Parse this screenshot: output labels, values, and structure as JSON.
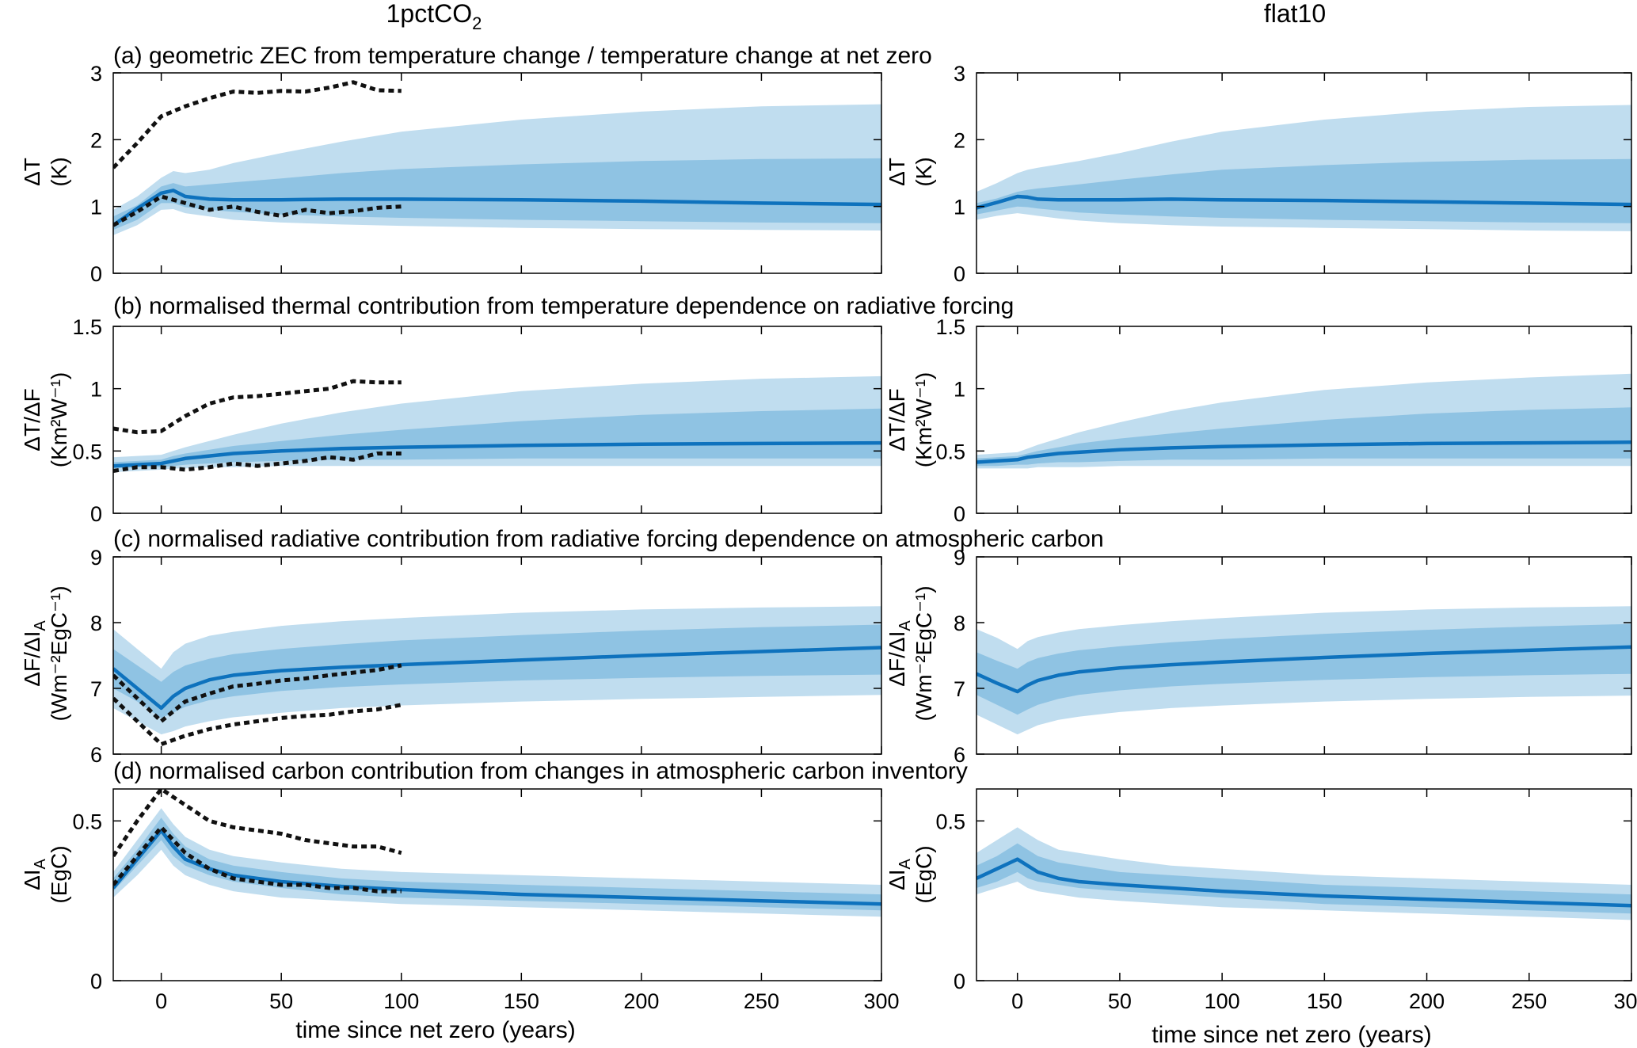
{
  "column_titles": {
    "left": "1pctCO",
    "left_subscript": "2",
    "right": "flat10"
  },
  "x_axis": {
    "label": "time since net zero (years)",
    "xlim": [
      -20,
      300
    ],
    "ticks": [
      0,
      50,
      100,
      150,
      200,
      250,
      300
    ],
    "tick_labels": [
      "0",
      "50",
      "100",
      "150",
      "200",
      "250",
      "300"
    ]
  },
  "colors": {
    "band_outer": "#c0ddef",
    "band_inner": "#8fc3e3",
    "median_line": "#0e72bd",
    "reference_dotted": "#111111"
  },
  "panels": [
    {
      "id": "a",
      "title": "(a) geometric ZEC from temperature change / temperature change at net zero",
      "ylabel_line1": "ΔT",
      "ylabel_line2": "(K)",
      "ylim": [
        0,
        3
      ],
      "ticks": [
        0,
        1,
        2,
        3
      ],
      "tick_labels": [
        "0",
        "1",
        "2",
        "3"
      ]
    },
    {
      "id": "b",
      "title": "(b) normalised thermal contribution from temperature dependence on radiative forcing",
      "ylabel_line1": "ΔT/ΔF",
      "ylabel_line2": "(Km²W⁻¹)",
      "ylim": [
        0,
        1.5
      ],
      "ticks": [
        0,
        0.5,
        1,
        1.5
      ],
      "tick_labels": [
        "0",
        "0.5",
        "1",
        "1.5"
      ]
    },
    {
      "id": "c",
      "title": "(c) normalised radiative contribution from radiative forcing dependence on atmospheric carbon",
      "ylabel_line1": "ΔF/ΔI",
      "ylabel_line1_subscript": "A",
      "ylabel_line2": "(Wm⁻²EgC⁻¹)",
      "ylim": [
        6,
        9
      ],
      "ticks": [
        6,
        7,
        8,
        9
      ],
      "tick_labels": [
        "6",
        "7",
        "8",
        "9"
      ]
    },
    {
      "id": "d",
      "title": "(d) normalised carbon contribution from changes in atmospheric carbon inventory",
      "ylabel_line1": "ΔI",
      "ylabel_line1_subscript": "A",
      "ylabel_line2": "(EgC)",
      "ylim": [
        0,
        0.6
      ],
      "ticks": [
        0,
        0.5
      ],
      "tick_labels": [
        "0",
        "0.5"
      ]
    }
  ],
  "chart_data": [
    {
      "type": "area",
      "panel": "a",
      "column": "1pctCO2",
      "x": [
        -20,
        -10,
        0,
        5,
        10,
        20,
        30,
        50,
        75,
        100,
        150,
        200,
        250,
        300
      ],
      "bands": {
        "outer_low": [
          0.57,
          0.72,
          0.95,
          0.96,
          0.9,
          0.85,
          0.8,
          0.76,
          0.73,
          0.71,
          0.68,
          0.66,
          0.65,
          0.64
        ],
        "inner_low": [
          0.65,
          0.8,
          1.05,
          1.05,
          0.99,
          0.95,
          0.92,
          0.88,
          0.85,
          0.83,
          0.8,
          0.78,
          0.76,
          0.75
        ],
        "inner_high": [
          0.85,
          1.02,
          1.3,
          1.35,
          1.3,
          1.33,
          1.36,
          1.42,
          1.5,
          1.56,
          1.63,
          1.68,
          1.71,
          1.72
        ],
        "outer_high": [
          0.95,
          1.15,
          1.43,
          1.53,
          1.5,
          1.55,
          1.65,
          1.8,
          1.97,
          2.12,
          2.3,
          2.42,
          2.5,
          2.53
        ]
      },
      "median": [
        0.72,
        0.97,
        1.2,
        1.24,
        1.15,
        1.11,
        1.1,
        1.1,
        1.11,
        1.11,
        1.1,
        1.08,
        1.05,
        1.03
      ],
      "dotted_series": [
        {
          "x": [
            -20,
            -10,
            0,
            10,
            20,
            30,
            40,
            50,
            60,
            70,
            80,
            90,
            100
          ],
          "values": [
            1.58,
            1.95,
            2.35,
            2.5,
            2.62,
            2.72,
            2.7,
            2.73,
            2.72,
            2.78,
            2.86,
            2.74,
            2.73
          ]
        },
        {
          "x": [
            -20,
            -10,
            0,
            10,
            20,
            30,
            40,
            50,
            60,
            70,
            80,
            90,
            100
          ],
          "values": [
            0.72,
            0.92,
            1.15,
            1.05,
            0.95,
            1.0,
            0.92,
            0.86,
            0.95,
            0.9,
            0.93,
            0.98,
            1.0
          ]
        }
      ]
    },
    {
      "type": "area",
      "panel": "a",
      "column": "flat10",
      "x": [
        -20,
        -10,
        0,
        5,
        10,
        20,
        30,
        50,
        75,
        100,
        150,
        200,
        250,
        300
      ],
      "bands": {
        "outer_low": [
          0.8,
          0.86,
          0.9,
          0.88,
          0.86,
          0.82,
          0.79,
          0.75,
          0.72,
          0.7,
          0.68,
          0.66,
          0.64,
          0.63
        ],
        "inner_low": [
          0.88,
          0.94,
          1.0,
          0.99,
          0.97,
          0.94,
          0.91,
          0.88,
          0.85,
          0.83,
          0.8,
          0.78,
          0.76,
          0.75
        ],
        "inner_high": [
          1.05,
          1.12,
          1.22,
          1.25,
          1.27,
          1.3,
          1.33,
          1.4,
          1.48,
          1.55,
          1.62,
          1.67,
          1.7,
          1.71
        ],
        "outer_high": [
          1.22,
          1.35,
          1.5,
          1.55,
          1.58,
          1.63,
          1.68,
          1.8,
          1.97,
          2.12,
          2.3,
          2.42,
          2.49,
          2.52
        ]
      },
      "median": [
        0.98,
        1.06,
        1.15,
        1.14,
        1.11,
        1.1,
        1.1,
        1.1,
        1.11,
        1.1,
        1.09,
        1.07,
        1.05,
        1.03
      ]
    },
    {
      "type": "area",
      "panel": "b",
      "column": "1pctCO2",
      "x": [
        -20,
        -10,
        0,
        5,
        10,
        20,
        30,
        50,
        75,
        100,
        150,
        200,
        250,
        300
      ],
      "bands": {
        "outer_low": [
          0.33,
          0.34,
          0.35,
          0.36,
          0.36,
          0.37,
          0.37,
          0.38,
          0.38,
          0.38,
          0.38,
          0.38,
          0.38,
          0.38
        ],
        "inner_low": [
          0.36,
          0.37,
          0.37,
          0.38,
          0.39,
          0.4,
          0.41,
          0.42,
          0.43,
          0.43,
          0.44,
          0.44,
          0.44,
          0.44
        ],
        "inner_high": [
          0.41,
          0.42,
          0.43,
          0.46,
          0.48,
          0.51,
          0.54,
          0.58,
          0.63,
          0.67,
          0.74,
          0.79,
          0.82,
          0.84
        ],
        "outer_high": [
          0.45,
          0.46,
          0.47,
          0.5,
          0.53,
          0.58,
          0.63,
          0.72,
          0.81,
          0.88,
          0.98,
          1.04,
          1.08,
          1.1
        ]
      },
      "median": [
        0.38,
        0.39,
        0.4,
        0.42,
        0.44,
        0.46,
        0.48,
        0.5,
        0.52,
        0.53,
        0.545,
        0.555,
        0.56,
        0.565
      ],
      "dotted_series": [
        {
          "x": [
            -20,
            -10,
            0,
            10,
            20,
            30,
            40,
            50,
            60,
            70,
            80,
            90,
            100
          ],
          "values": [
            0.68,
            0.65,
            0.66,
            0.78,
            0.88,
            0.93,
            0.94,
            0.96,
            0.98,
            1.0,
            1.06,
            1.05,
            1.05
          ]
        },
        {
          "x": [
            -20,
            -10,
            0,
            10,
            20,
            30,
            40,
            50,
            60,
            70,
            80,
            90,
            100
          ],
          "values": [
            0.34,
            0.37,
            0.37,
            0.35,
            0.37,
            0.4,
            0.38,
            0.4,
            0.42,
            0.45,
            0.43,
            0.48,
            0.48
          ]
        }
      ]
    },
    {
      "type": "area",
      "panel": "b",
      "column": "flat10",
      "x": [
        -20,
        -10,
        0,
        5,
        10,
        20,
        30,
        50,
        75,
        100,
        150,
        200,
        250,
        300
      ],
      "bands": {
        "outer_low": [
          0.36,
          0.36,
          0.36,
          0.36,
          0.37,
          0.37,
          0.37,
          0.38,
          0.38,
          0.38,
          0.38,
          0.38,
          0.38,
          0.38
        ],
        "inner_low": [
          0.38,
          0.38,
          0.39,
          0.39,
          0.4,
          0.41,
          0.41,
          0.42,
          0.43,
          0.43,
          0.44,
          0.44,
          0.44,
          0.44
        ],
        "inner_high": [
          0.44,
          0.45,
          0.46,
          0.48,
          0.5,
          0.53,
          0.56,
          0.6,
          0.64,
          0.68,
          0.75,
          0.8,
          0.83,
          0.85
        ],
        "outer_high": [
          0.47,
          0.48,
          0.49,
          0.52,
          0.55,
          0.6,
          0.65,
          0.73,
          0.82,
          0.89,
          0.99,
          1.05,
          1.09,
          1.12
        ]
      },
      "median": [
        0.41,
        0.42,
        0.43,
        0.45,
        0.46,
        0.48,
        0.49,
        0.51,
        0.525,
        0.535,
        0.55,
        0.56,
        0.565,
        0.57
      ]
    },
    {
      "type": "area",
      "panel": "c",
      "column": "1pctCO2",
      "x": [
        -20,
        -10,
        0,
        5,
        10,
        20,
        30,
        50,
        75,
        100,
        150,
        200,
        250,
        300
      ],
      "bands": {
        "outer_low": [
          6.7,
          6.5,
          6.3,
          6.35,
          6.42,
          6.5,
          6.56,
          6.63,
          6.7,
          6.74,
          6.8,
          6.84,
          6.87,
          6.9
        ],
        "inner_low": [
          7.0,
          6.8,
          6.55,
          6.63,
          6.72,
          6.82,
          6.88,
          6.96,
          7.02,
          7.06,
          7.12,
          7.16,
          7.19,
          7.21
        ],
        "inner_high": [
          7.6,
          7.35,
          7.1,
          7.25,
          7.35,
          7.45,
          7.52,
          7.6,
          7.67,
          7.73,
          7.81,
          7.88,
          7.93,
          7.97
        ],
        "outer_high": [
          7.9,
          7.6,
          7.3,
          7.55,
          7.68,
          7.8,
          7.86,
          7.95,
          8.02,
          8.07,
          8.15,
          8.2,
          8.23,
          8.25
        ]
      },
      "median": [
        7.3,
        7.0,
        6.7,
        6.88,
        7.0,
        7.13,
        7.2,
        7.27,
        7.32,
        7.36,
        7.43,
        7.5,
        7.56,
        7.62
      ],
      "dotted_series": [
        {
          "x": [
            -20,
            -10,
            0,
            10,
            20,
            30,
            40,
            50,
            60,
            70,
            80,
            90,
            100
          ],
          "values": [
            7.2,
            6.85,
            6.5,
            6.8,
            6.92,
            7.03,
            7.07,
            7.12,
            7.15,
            7.2,
            7.24,
            7.28,
            7.35
          ]
        },
        {
          "x": [
            -20,
            -10,
            0,
            10,
            20,
            30,
            40,
            50,
            60,
            70,
            80,
            90,
            100
          ],
          "values": [
            6.85,
            6.5,
            6.15,
            6.28,
            6.38,
            6.45,
            6.5,
            6.55,
            6.58,
            6.6,
            6.65,
            6.68,
            6.75
          ]
        }
      ]
    },
    {
      "type": "area",
      "panel": "c",
      "column": "flat10",
      "x": [
        -20,
        -10,
        0,
        5,
        10,
        20,
        30,
        50,
        75,
        100,
        150,
        200,
        250,
        300
      ],
      "bands": {
        "outer_low": [
          6.6,
          6.45,
          6.3,
          6.37,
          6.44,
          6.52,
          6.57,
          6.64,
          6.7,
          6.74,
          6.8,
          6.84,
          6.87,
          6.89
        ],
        "inner_low": [
          6.9,
          6.75,
          6.6,
          6.68,
          6.75,
          6.84,
          6.9,
          6.97,
          7.03,
          7.07,
          7.13,
          7.17,
          7.2,
          7.22
        ],
        "inner_high": [
          7.55,
          7.42,
          7.3,
          7.4,
          7.46,
          7.53,
          7.58,
          7.64,
          7.7,
          7.75,
          7.83,
          7.89,
          7.94,
          7.98
        ],
        "outer_high": [
          7.9,
          7.77,
          7.6,
          7.72,
          7.78,
          7.85,
          7.9,
          7.96,
          8.02,
          8.07,
          8.15,
          8.2,
          8.23,
          8.25
        ]
      },
      "median": [
        7.22,
        7.08,
        6.95,
        7.05,
        7.12,
        7.2,
        7.25,
        7.31,
        7.36,
        7.4,
        7.47,
        7.53,
        7.58,
        7.63
      ]
    },
    {
      "type": "area",
      "panel": "d",
      "column": "1pctCO2",
      "x": [
        -20,
        -10,
        0,
        5,
        10,
        20,
        30,
        50,
        75,
        100,
        150,
        200,
        250,
        300
      ],
      "bands": {
        "outer_low": [
          0.26,
          0.33,
          0.41,
          0.36,
          0.33,
          0.3,
          0.28,
          0.26,
          0.25,
          0.24,
          0.23,
          0.22,
          0.21,
          0.2
        ],
        "inner_low": [
          0.28,
          0.36,
          0.44,
          0.39,
          0.36,
          0.33,
          0.31,
          0.29,
          0.27,
          0.26,
          0.25,
          0.24,
          0.23,
          0.22
        ],
        "inner_high": [
          0.32,
          0.41,
          0.51,
          0.46,
          0.42,
          0.38,
          0.36,
          0.34,
          0.32,
          0.31,
          0.3,
          0.29,
          0.28,
          0.27
        ],
        "outer_high": [
          0.34,
          0.44,
          0.54,
          0.49,
          0.45,
          0.41,
          0.39,
          0.37,
          0.35,
          0.34,
          0.33,
          0.32,
          0.31,
          0.3
        ]
      },
      "median": [
        0.29,
        0.38,
        0.47,
        0.42,
        0.38,
        0.35,
        0.33,
        0.31,
        0.295,
        0.285,
        0.27,
        0.26,
        0.25,
        0.24
      ],
      "dotted_series": [
        {
          "x": [
            -20,
            -10,
            0,
            10,
            20,
            30,
            40,
            50,
            60,
            70,
            80,
            90,
            100
          ],
          "values": [
            0.39,
            0.5,
            0.6,
            0.55,
            0.5,
            0.48,
            0.47,
            0.46,
            0.44,
            0.43,
            0.42,
            0.42,
            0.4
          ]
        },
        {
          "x": [
            -20,
            -10,
            0,
            10,
            20,
            30,
            40,
            50,
            60,
            70,
            80,
            90,
            100
          ],
          "values": [
            0.3,
            0.39,
            0.48,
            0.4,
            0.35,
            0.32,
            0.31,
            0.3,
            0.3,
            0.29,
            0.29,
            0.28,
            0.28
          ]
        }
      ]
    },
    {
      "type": "area",
      "panel": "d",
      "column": "flat10",
      "x": [
        -20,
        -10,
        0,
        5,
        10,
        20,
        30,
        50,
        75,
        100,
        150,
        200,
        250,
        300
      ],
      "bands": {
        "outer_low": [
          0.27,
          0.29,
          0.31,
          0.29,
          0.28,
          0.27,
          0.26,
          0.25,
          0.24,
          0.23,
          0.22,
          0.21,
          0.2,
          0.19
        ],
        "inner_low": [
          0.29,
          0.31,
          0.34,
          0.32,
          0.31,
          0.3,
          0.29,
          0.28,
          0.27,
          0.26,
          0.24,
          0.23,
          0.22,
          0.21
        ],
        "inner_high": [
          0.36,
          0.39,
          0.43,
          0.41,
          0.39,
          0.37,
          0.36,
          0.34,
          0.33,
          0.32,
          0.3,
          0.29,
          0.28,
          0.27
        ],
        "outer_high": [
          0.4,
          0.44,
          0.48,
          0.46,
          0.44,
          0.41,
          0.4,
          0.38,
          0.36,
          0.35,
          0.33,
          0.32,
          0.31,
          0.3
        ]
      },
      "median": [
        0.32,
        0.35,
        0.38,
        0.36,
        0.34,
        0.32,
        0.31,
        0.3,
        0.29,
        0.28,
        0.265,
        0.255,
        0.245,
        0.235
      ]
    }
  ]
}
